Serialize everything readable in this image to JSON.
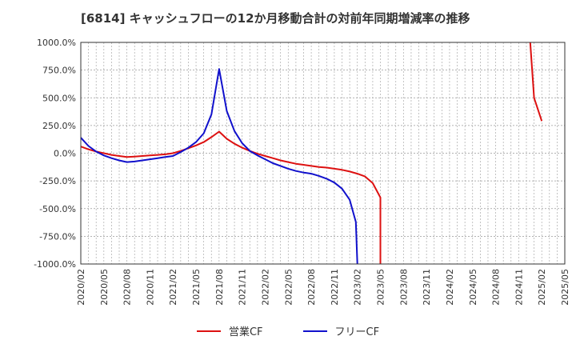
{
  "chart_data": {
    "type": "line",
    "title": "[6814]  キャッシュフローの12か月移動合計の対前年同期増減率の推移",
    "ylim": [
      -1000,
      1000
    ],
    "yticks": [
      {
        "value": 1000,
        "label": "1000.0%"
      },
      {
        "value": 750,
        "label": "750.0%"
      },
      {
        "value": 500,
        "label": "500.0%"
      },
      {
        "value": 250,
        "label": "250.0%"
      },
      {
        "value": 0,
        "label": "0.0%"
      },
      {
        "value": -250,
        "label": "-250.0%"
      },
      {
        "value": -500,
        "label": "-500.0%"
      },
      {
        "value": -750,
        "label": "-750.0%"
      },
      {
        "value": -1000,
        "label": "-1000.0%"
      }
    ],
    "xrange": [
      0,
      63
    ],
    "xticks": [
      {
        "m": 0,
        "label": "2020/02"
      },
      {
        "m": 3,
        "label": "2020/05"
      },
      {
        "m": 6,
        "label": "2020/08"
      },
      {
        "m": 9,
        "label": "2020/11"
      },
      {
        "m": 12,
        "label": "2021/02"
      },
      {
        "m": 15,
        "label": "2021/05"
      },
      {
        "m": 18,
        "label": "2021/08"
      },
      {
        "m": 21,
        "label": "2021/11"
      },
      {
        "m": 24,
        "label": "2022/02"
      },
      {
        "m": 27,
        "label": "2022/05"
      },
      {
        "m": 30,
        "label": "2022/08"
      },
      {
        "m": 33,
        "label": "2022/11"
      },
      {
        "m": 36,
        "label": "2023/02"
      },
      {
        "m": 39,
        "label": "2023/05"
      },
      {
        "m": 42,
        "label": "2023/08"
      },
      {
        "m": 45,
        "label": "2023/11"
      },
      {
        "m": 48,
        "label": "2024/02"
      },
      {
        "m": 51,
        "label": "2024/05"
      },
      {
        "m": 54,
        "label": "2024/08"
      },
      {
        "m": 57,
        "label": "2024/11"
      },
      {
        "m": 60,
        "label": "2025/02"
      },
      {
        "m": 63,
        "label": "2025/05"
      }
    ],
    "series": [
      {
        "name": "営業CF",
        "color": "#dd1111",
        "points": [
          [
            0,
            60
          ],
          [
            1,
            35
          ],
          [
            2,
            15
          ],
          [
            3,
            0
          ],
          [
            4,
            -15
          ],
          [
            5,
            -25
          ],
          [
            6,
            -35
          ],
          [
            7,
            -30
          ],
          [
            8,
            -25
          ],
          [
            9,
            -20
          ],
          [
            10,
            -15
          ],
          [
            11,
            -10
          ],
          [
            12,
            0
          ],
          [
            13,
            20
          ],
          [
            14,
            45
          ],
          [
            15,
            70
          ],
          [
            16,
            100
          ],
          [
            17,
            145
          ],
          [
            18,
            195
          ],
          [
            19,
            130
          ],
          [
            20,
            85
          ],
          [
            21,
            50
          ],
          [
            22,
            20
          ],
          [
            23,
            -5
          ],
          [
            24,
            -25
          ],
          [
            25,
            -45
          ],
          [
            26,
            -65
          ],
          [
            27,
            -80
          ],
          [
            28,
            -95
          ],
          [
            29,
            -105
          ],
          [
            30,
            -115
          ],
          [
            31,
            -125
          ],
          [
            32,
            -130
          ],
          [
            33,
            -140
          ],
          [
            34,
            -150
          ],
          [
            35,
            -165
          ],
          [
            36,
            -185
          ],
          [
            37,
            -210
          ],
          [
            38,
            -270
          ],
          [
            39,
            -400
          ],
          [
            39,
            -1000
          ]
        ],
        "points_2": [
          [
            58.5,
            1000
          ],
          [
            59,
            500
          ],
          [
            60,
            290
          ]
        ]
      },
      {
        "name": "フリーCF",
        "color": "#1111cc",
        "points": [
          [
            0,
            140
          ],
          [
            1,
            65
          ],
          [
            2,
            15
          ],
          [
            3,
            -20
          ],
          [
            4,
            -45
          ],
          [
            5,
            -65
          ],
          [
            6,
            -80
          ],
          [
            7,
            -75
          ],
          [
            8,
            -65
          ],
          [
            9,
            -55
          ],
          [
            10,
            -45
          ],
          [
            11,
            -35
          ],
          [
            12,
            -25
          ],
          [
            13,
            10
          ],
          [
            14,
            50
          ],
          [
            15,
            100
          ],
          [
            16,
            180
          ],
          [
            17,
            350
          ],
          [
            18,
            760
          ],
          [
            19,
            380
          ],
          [
            20,
            200
          ],
          [
            21,
            90
          ],
          [
            22,
            20
          ],
          [
            23,
            -20
          ],
          [
            24,
            -55
          ],
          [
            25,
            -90
          ],
          [
            26,
            -115
          ],
          [
            27,
            -140
          ],
          [
            28,
            -160
          ],
          [
            29,
            -175
          ],
          [
            30,
            -185
          ],
          [
            31,
            -205
          ],
          [
            32,
            -230
          ],
          [
            33,
            -265
          ],
          [
            34,
            -320
          ],
          [
            35,
            -420
          ],
          [
            35.8,
            -620
          ],
          [
            36,
            -1000
          ]
        ]
      }
    ],
    "legend": [
      "営業CF",
      "フリーCF"
    ]
  }
}
